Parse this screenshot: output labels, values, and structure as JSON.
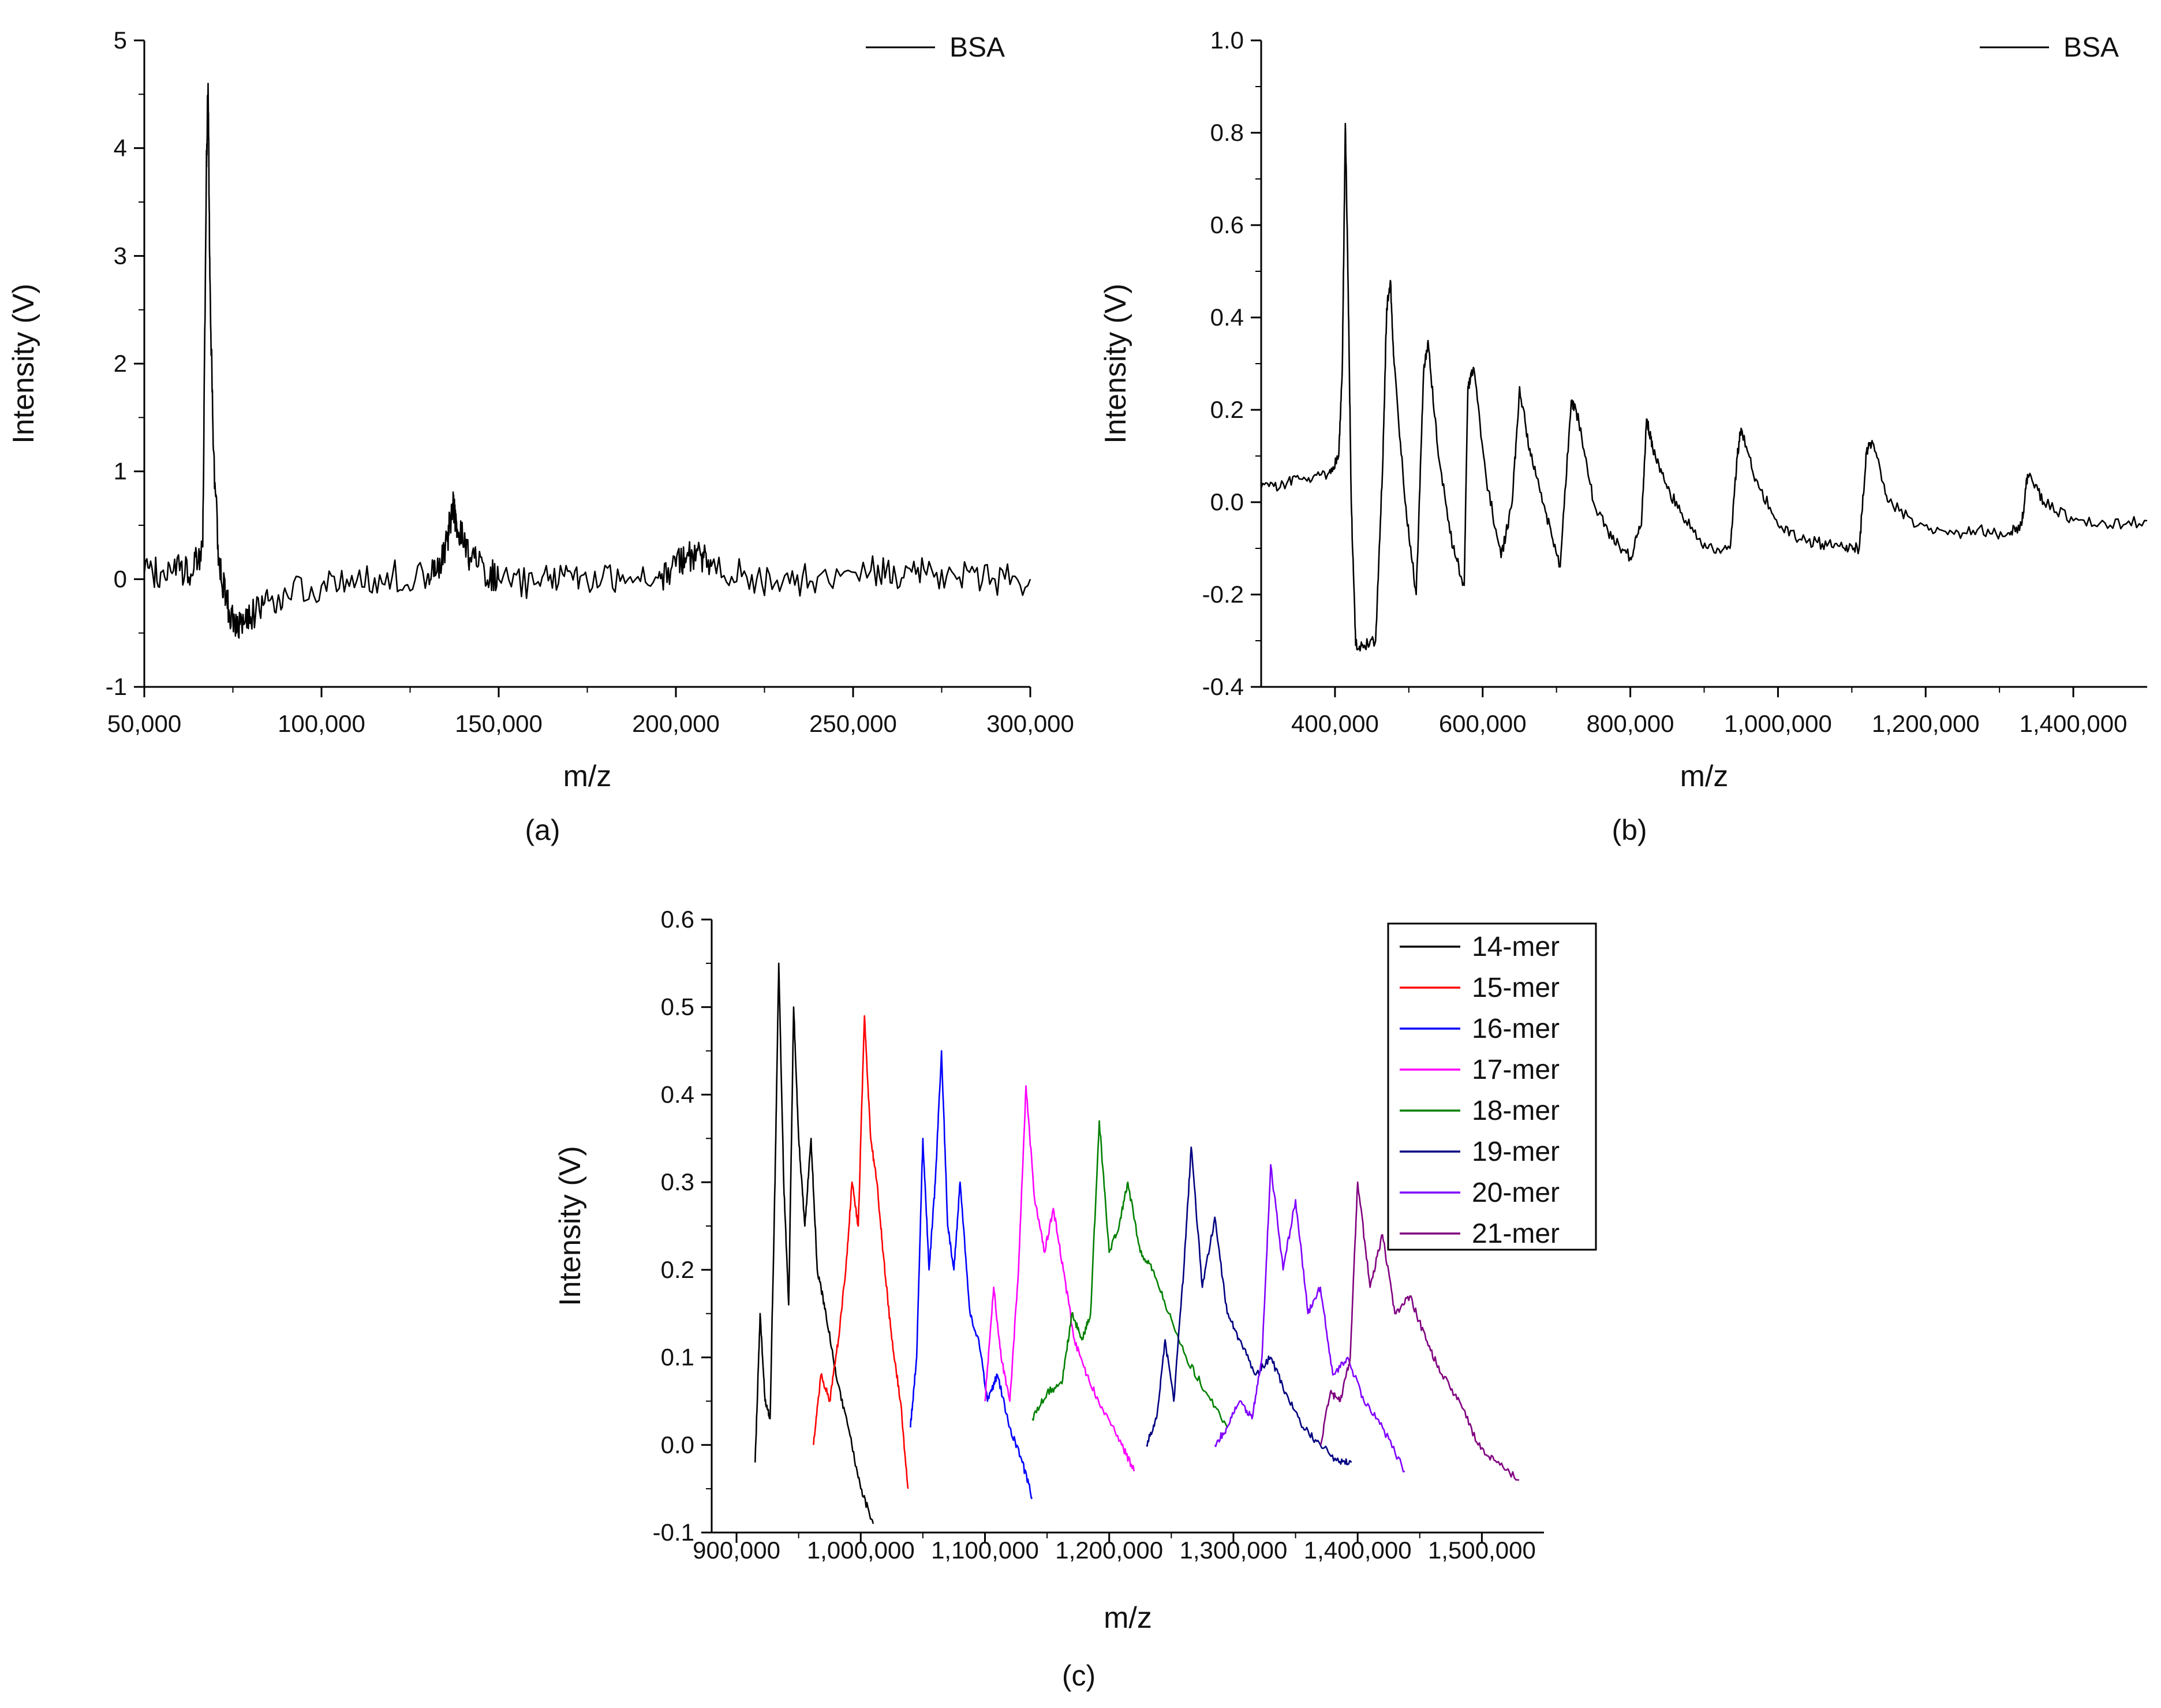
{
  "figure": {
    "caption_a": "(a)",
    "caption_b": "(b)",
    "caption_c": "(c)"
  },
  "chart_data": [
    {
      "id": "a",
      "type": "line",
      "xlabel": "m/z",
      "ylabel": "Intensity (V)",
      "xlim": [
        50000,
        300000
      ],
      "ylim": [
        -1,
        5
      ],
      "xticks": [
        50000,
        100000,
        150000,
        200000,
        250000,
        300000
      ],
      "xtick_labels": [
        "50,000",
        "100,000",
        "150,000",
        "200,000",
        "250,000",
        "300,000"
      ],
      "yticks": [
        -1,
        0,
        1,
        2,
        3,
        4,
        5
      ],
      "ytick_labels": [
        "-1",
        "0",
        "1",
        "2",
        "3",
        "4",
        "5"
      ],
      "legend": "top-right",
      "series": [
        {
          "name": "BSA",
          "color": "#000000",
          "x": [
            50000,
            55000,
            60000,
            64000,
            66500,
            67500,
            68000,
            68500,
            69500,
            71000,
            73000,
            75000,
            77000,
            80000,
            85000,
            90000,
            100000,
            110000,
            120000,
            130000,
            133000,
            135500,
            137000,
            138000,
            139500,
            142000,
            146000,
            150000,
            160000,
            168000,
            175000,
            185000,
            195000,
            200000,
            203000,
            207000,
            210000,
            220000,
            230000,
            240000,
            255000,
            262000,
            270000,
            280000,
            290000,
            300000
          ],
          "values": [
            0.05,
            0.07,
            0.08,
            0.1,
            0.3,
            3.8,
            4.6,
            2.8,
            1.2,
            0.2,
            -0.2,
            -0.38,
            -0.42,
            -0.35,
            -0.2,
            -0.12,
            -0.06,
            -0.01,
            0.03,
            0.05,
            0.1,
            0.35,
            0.7,
            0.55,
            0.4,
            0.2,
            0.07,
            0.0,
            -0.05,
            0.05,
            -0.02,
            0.04,
            0.01,
            0.12,
            0.2,
            0.22,
            0.12,
            0.02,
            -0.04,
            0.02,
            0.08,
            0.03,
            0.09,
            0.02,
            0.0,
            0.0
          ]
        }
      ]
    },
    {
      "id": "b",
      "type": "line",
      "xlabel": "m/z",
      "ylabel": "Intensity (V)",
      "xlim": [
        300000,
        1500000
      ],
      "ylim": [
        -0.4,
        1.0
      ],
      "xticks": [
        400000,
        600000,
        800000,
        1000000,
        1200000,
        1400000
      ],
      "xtick_labels": [
        "400,000",
        "600,000",
        "800,000",
        "1,000,000",
        "1,200,000",
        "1,400,000"
      ],
      "yticks": [
        -0.4,
        -0.2,
        0.0,
        0.2,
        0.4,
        0.6,
        0.8,
        1.0
      ],
      "ytick_labels": [
        "-0.4",
        "-0.2",
        "0.0",
        "0.2",
        "0.4",
        "0.6",
        "0.8",
        "1.0"
      ],
      "legend": "top-right",
      "series": [
        {
          "name": "BSA",
          "color": "#000000",
          "x": [
            300000,
            330000,
            360000,
            390000,
            405000,
            410000,
            414000,
            418000,
            422000,
            428000,
            440000,
            455000,
            465000,
            470000,
            475000,
            480000,
            495000,
            510000,
            520000,
            526000,
            540000,
            560000,
            575000,
            580000,
            588000,
            605000,
            625000,
            640000,
            650000,
            665000,
            685000,
            705000,
            720000,
            730000,
            750000,
            775000,
            800000,
            815000,
            822000,
            830000,
            850000,
            875000,
            905000,
            935000,
            945000,
            950000,
            970000,
            1000000,
            1030000,
            1060000,
            1090000,
            1110000,
            1120000,
            1128000,
            1150000,
            1190000,
            1230000,
            1270000,
            1310000,
            1330000,
            1338000,
            1360000,
            1400000,
            1450000,
            1500000
          ],
          "values": [
            0.03,
            0.04,
            0.05,
            0.06,
            0.1,
            0.3,
            0.82,
            0.45,
            0.0,
            -0.31,
            -0.31,
            -0.3,
            0.1,
            0.42,
            0.48,
            0.3,
            0.0,
            -0.2,
            0.28,
            0.35,
            0.1,
            -0.1,
            -0.18,
            0.25,
            0.29,
            0.05,
            -0.12,
            0.0,
            0.25,
            0.1,
            -0.02,
            -0.14,
            0.22,
            0.18,
            0.0,
            -0.08,
            -0.12,
            -0.05,
            0.18,
            0.12,
            0.03,
            -0.04,
            -0.1,
            -0.1,
            0.1,
            0.16,
            0.05,
            -0.05,
            -0.08,
            -0.09,
            -0.1,
            -0.1,
            0.11,
            0.13,
            0.0,
            -0.05,
            -0.07,
            -0.06,
            -0.07,
            -0.05,
            0.06,
            0.0,
            -0.04,
            -0.05,
            -0.04
          ]
        }
      ]
    },
    {
      "id": "c",
      "type": "line",
      "xlabel": "m/z",
      "ylabel": "Intensity (V)",
      "xlim": [
        880000,
        1550000
      ],
      "ylim": [
        -0.1,
        0.6
      ],
      "xticks": [
        900000,
        1000000,
        1100000,
        1200000,
        1300000,
        1400000,
        1500000
      ],
      "xtick_labels": [
        "900,000",
        "1,000,000",
        "1,100,000",
        "1,200,000",
        "1,300,000",
        "1,400,000",
        "1,500,000"
      ],
      "yticks": [
        -0.1,
        0.0,
        0.1,
        0.2,
        0.3,
        0.4,
        0.5,
        0.6
      ],
      "ytick_labels": [
        "-0.1",
        "0.0",
        "0.1",
        "0.2",
        "0.3",
        "0.4",
        "0.5",
        "0.6"
      ],
      "legend": "top-right",
      "series": [
        {
          "name": "14-mer",
          "color": "#000000",
          "x": [
            915000,
            919000,
            923000,
            927000,
            931000,
            934000,
            938000,
            942000,
            946000,
            950000,
            955000,
            960000,
            965000,
            972000,
            980000,
            990000,
            1000000,
            1010000
          ],
          "values": [
            -0.02,
            0.15,
            0.05,
            0.03,
            0.3,
            0.55,
            0.3,
            0.16,
            0.5,
            0.35,
            0.25,
            0.35,
            0.2,
            0.15,
            0.08,
            0.02,
            -0.05,
            -0.09
          ]
        },
        {
          "name": "15-mer",
          "color": "#ff0000",
          "x": [
            962000,
            968000,
            975000,
            982000,
            988000,
            993000,
            998000,
            1003000,
            1008000,
            1013000,
            1018000,
            1025000,
            1032000,
            1038000
          ],
          "values": [
            0.0,
            0.08,
            0.05,
            0.12,
            0.2,
            0.3,
            0.25,
            0.49,
            0.35,
            0.3,
            0.22,
            0.12,
            0.05,
            -0.05
          ]
        },
        {
          "name": "16-mer",
          "color": "#0000ff",
          "x": [
            1040000,
            1045000,
            1050000,
            1055000,
            1060000,
            1065000,
            1070000,
            1075000,
            1080000,
            1088000,
            1095000,
            1102000,
            1110000,
            1120000,
            1130000,
            1138000
          ],
          "values": [
            0.02,
            0.1,
            0.35,
            0.2,
            0.3,
            0.45,
            0.25,
            0.2,
            0.3,
            0.15,
            0.12,
            0.05,
            0.08,
            0.02,
            -0.02,
            -0.06
          ]
        },
        {
          "name": "17-mer",
          "color": "#ff00ff",
          "x": [
            1100000,
            1107000,
            1113000,
            1120000,
            1127000,
            1133000,
            1140000,
            1148000,
            1155000,
            1163000,
            1172000,
            1182000,
            1195000,
            1210000,
            1220000
          ],
          "values": [
            0.05,
            0.18,
            0.1,
            0.05,
            0.2,
            0.41,
            0.28,
            0.22,
            0.27,
            0.2,
            0.12,
            0.08,
            0.04,
            0.0,
            -0.03
          ]
        },
        {
          "name": "18-mer",
          "color": "#008000",
          "x": [
            1138000,
            1150000,
            1162000,
            1170000,
            1178000,
            1185000,
            1192000,
            1200000,
            1208000,
            1215000,
            1225000,
            1235000,
            1248000,
            1262000,
            1278000,
            1295000
          ],
          "values": [
            0.03,
            0.06,
            0.07,
            0.15,
            0.12,
            0.15,
            0.37,
            0.22,
            0.25,
            0.3,
            0.22,
            0.2,
            0.15,
            0.1,
            0.06,
            0.02
          ]
        },
        {
          "name": "19-mer",
          "color": "#000080",
          "x": [
            1230000,
            1238000,
            1245000,
            1252000,
            1260000,
            1266000,
            1275000,
            1285000,
            1295000,
            1305000,
            1318000,
            1330000,
            1342000,
            1356000,
            1370000,
            1385000,
            1395000
          ],
          "values": [
            0.0,
            0.03,
            0.12,
            0.05,
            0.2,
            0.34,
            0.18,
            0.26,
            0.15,
            0.12,
            0.08,
            0.1,
            0.06,
            0.02,
            0.0,
            -0.02,
            -0.02
          ]
        },
        {
          "name": "20-mer",
          "color": "#8000ff",
          "x": [
            1285000,
            1295000,
            1305000,
            1315000,
            1323000,
            1330000,
            1340000,
            1350000,
            1360000,
            1370000,
            1380000,
            1392000,
            1405000,
            1420000,
            1438000
          ],
          "values": [
            0.0,
            0.02,
            0.05,
            0.03,
            0.1,
            0.32,
            0.2,
            0.28,
            0.15,
            0.18,
            0.08,
            0.1,
            0.05,
            0.02,
            -0.03
          ]
        },
        {
          "name": "21-mer",
          "color": "#800080",
          "x": [
            1370000,
            1378000,
            1386000,
            1394000,
            1400000,
            1410000,
            1420000,
            1430000,
            1442000,
            1455000,
            1468000,
            1482000,
            1497000,
            1512000,
            1530000
          ],
          "values": [
            0.0,
            0.06,
            0.05,
            0.1,
            0.3,
            0.18,
            0.24,
            0.15,
            0.17,
            0.12,
            0.08,
            0.05,
            0.0,
            -0.02,
            -0.04
          ]
        }
      ]
    }
  ]
}
